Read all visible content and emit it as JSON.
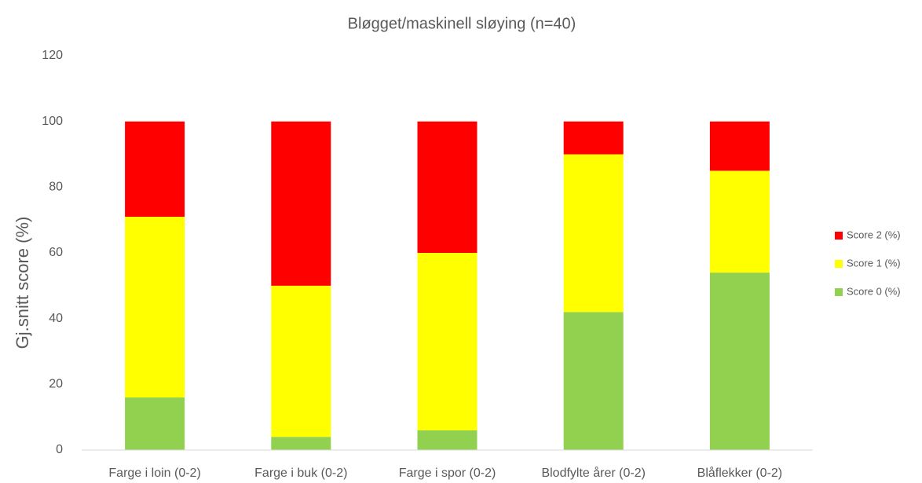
{
  "chart_data": {
    "type": "stacked_bar",
    "title": "Bløgget/maskinell sløying (n=40)",
    "y_label": "Gj.snitt score (%)",
    "categories": [
      "Farge i loin (0-2)",
      "Farge i buk (0-2)",
      "Farge i spor (0-2)",
      "Blodfylte årer (0-2)",
      "Blåflekker (0-2)"
    ],
    "series": [
      {
        "name": "Score 0 (%)",
        "color": "#92d050",
        "values": [
          16,
          4,
          6,
          42,
          54
        ]
      },
      {
        "name": "Score 1 (%)",
        "color": "#ffff00",
        "values": [
          55,
          46,
          54,
          48,
          31
        ]
      },
      {
        "name": "Score 2 (%)",
        "color": "#ff0000",
        "values": [
          29,
          50,
          40,
          10,
          15
        ]
      }
    ],
    "ylim": [
      0,
      120
    ],
    "yticks": [
      0,
      20,
      40,
      60,
      80,
      100,
      120
    ],
    "grid": false,
    "legend": "right"
  }
}
